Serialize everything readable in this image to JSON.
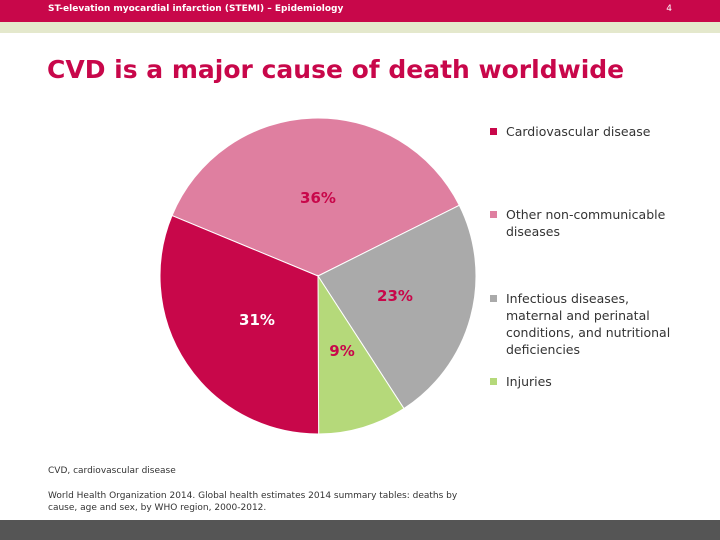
{
  "header": {
    "text": "ST-elevation myocardial infarction (STEMI) – Epidemiology",
    "page_number": "4"
  },
  "title": "CVD is a major cause of death worldwide",
  "chart_data": {
    "type": "pie",
    "slices": [
      {
        "name": "Cardiovascular disease",
        "value": 31,
        "label": "31%",
        "color": "#c8074a"
      },
      {
        "name": "Other non-communicable diseases",
        "value": 36,
        "label": "36%",
        "color": "#df7fa0"
      },
      {
        "name": "Infectious diseases, maternal and perinatal conditions, and nutritional deficiencies",
        "value": 23,
        "label": "23%",
        "color": "#aaaaaa"
      },
      {
        "name": "Injuries",
        "value": 9,
        "label": "9%",
        "color": "#b5d97a"
      }
    ],
    "legend": {
      "position": "right",
      "entries": [
        {
          "text": "Cardiovascular disease",
          "color": "#c8074a"
        },
        {
          "text": "Other non-communicable diseases",
          "color": "#df7fa0"
        },
        {
          "text": "Infectious diseases, maternal and perinatal conditions, and nutritional deficiencies",
          "color": "#aaaaaa"
        },
        {
          "text": "Injuries",
          "color": "#b5d97a"
        }
      ]
    }
  },
  "footnotes": {
    "abbreviation": "CVD, cardiovascular disease",
    "reference": "World Health Organization 2014. Global health estimates 2014 summary tables: deaths by cause, age and sex, by WHO region, 2000-2012."
  },
  "colors": {
    "brand": "#c8074a",
    "subbar": "#e4e8cc",
    "footer": "#555555"
  }
}
